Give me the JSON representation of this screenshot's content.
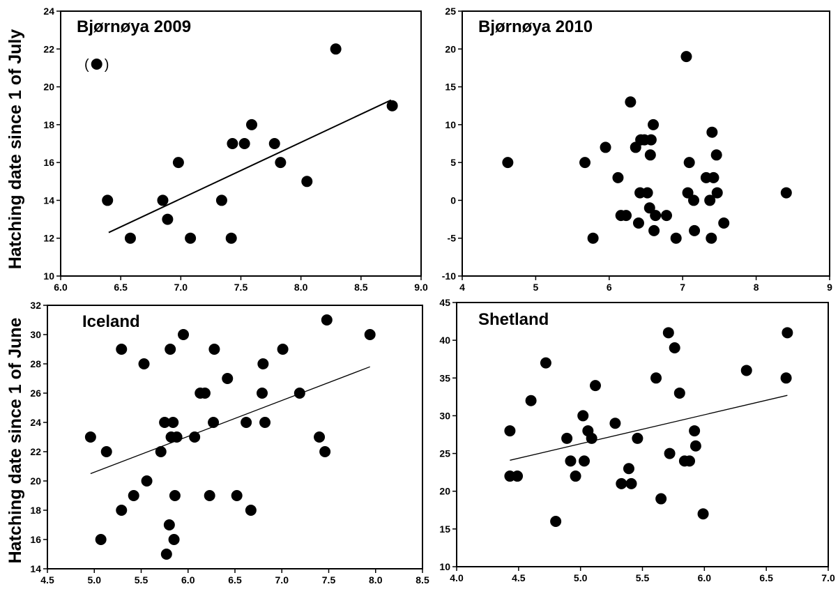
{
  "figure": {
    "ylabel_top": "Hatching date since 1 of July",
    "ylabel_bottom": "Hatching date since 1 of June"
  },
  "chart_data": [
    {
      "type": "scatter",
      "title": "Bjørnøya 2009",
      "xlim": [
        6.0,
        9.0
      ],
      "ylim": [
        10,
        24
      ],
      "xticks": [
        "6.0",
        "6.5",
        "7.0",
        "7.5",
        "8.0",
        "8.5",
        "9.0"
      ],
      "yticks": [
        "10",
        "12",
        "14",
        "16",
        "18",
        "20",
        "22",
        "24"
      ],
      "points": [
        {
          "x": 6.39,
          "y": 14
        },
        {
          "x": 6.58,
          "y": 12
        },
        {
          "x": 6.85,
          "y": 14
        },
        {
          "x": 6.89,
          "y": 13
        },
        {
          "x": 6.98,
          "y": 16
        },
        {
          "x": 7.08,
          "y": 12
        },
        {
          "x": 7.34,
          "y": 14
        },
        {
          "x": 7.42,
          "y": 12
        },
        {
          "x": 7.43,
          "y": 17
        },
        {
          "x": 7.53,
          "y": 17
        },
        {
          "x": 7.59,
          "y": 18
        },
        {
          "x": 7.78,
          "y": 17
        },
        {
          "x": 7.83,
          "y": 16
        },
        {
          "x": 8.05,
          "y": 15
        },
        {
          "x": 8.29,
          "y": 22
        },
        {
          "x": 8.76,
          "y": 19
        }
      ],
      "outlier": {
        "x": 6.3,
        "y": 21.2,
        "label_left": "(",
        "label_right": ")"
      },
      "fit": {
        "x0": 6.4,
        "y0": 12.3,
        "x1": 8.75,
        "y1": 19.3
      }
    },
    {
      "type": "scatter",
      "title": "Bjørnøya 2010",
      "xlim": [
        4,
        9
      ],
      "ylim": [
        -10,
        25
      ],
      "xticks": [
        "4",
        "5",
        "6",
        "7",
        "8",
        "9"
      ],
      "yticks": [
        "-10",
        "-5",
        "0",
        "5",
        "10",
        "15",
        "20",
        "25"
      ],
      "points": [
        {
          "x": 4.62,
          "y": 5
        },
        {
          "x": 5.67,
          "y": 5
        },
        {
          "x": 5.78,
          "y": -5
        },
        {
          "x": 5.95,
          "y": 7
        },
        {
          "x": 6.12,
          "y": 3
        },
        {
          "x": 6.16,
          "y": -2
        },
        {
          "x": 6.23,
          "y": -2
        },
        {
          "x": 6.29,
          "y": 13
        },
        {
          "x": 6.36,
          "y": 7
        },
        {
          "x": 6.4,
          "y": -3
        },
        {
          "x": 6.42,
          "y": 1
        },
        {
          "x": 6.43,
          "y": 8
        },
        {
          "x": 6.48,
          "y": 8
        },
        {
          "x": 6.52,
          "y": 1
        },
        {
          "x": 6.55,
          "y": -1
        },
        {
          "x": 6.56,
          "y": 6
        },
        {
          "x": 6.57,
          "y": 8
        },
        {
          "x": 6.6,
          "y": 10
        },
        {
          "x": 6.61,
          "y": -4
        },
        {
          "x": 6.63,
          "y": -2
        },
        {
          "x": 6.78,
          "y": -2
        },
        {
          "x": 6.91,
          "y": -5
        },
        {
          "x": 7.05,
          "y": 19
        },
        {
          "x": 7.07,
          "y": 1
        },
        {
          "x": 7.09,
          "y": 5
        },
        {
          "x": 7.15,
          "y": 0
        },
        {
          "x": 7.16,
          "y": -4
        },
        {
          "x": 7.32,
          "y": 3
        },
        {
          "x": 7.37,
          "y": 0
        },
        {
          "x": 7.39,
          "y": -5
        },
        {
          "x": 7.4,
          "y": 9
        },
        {
          "x": 7.42,
          "y": 3
        },
        {
          "x": 7.46,
          "y": 6
        },
        {
          "x": 7.47,
          "y": 1
        },
        {
          "x": 7.56,
          "y": -3
        },
        {
          "x": 8.41,
          "y": 1
        }
      ]
    },
    {
      "type": "scatter",
      "title": "Iceland",
      "xlim": [
        4.5,
        8.5
      ],
      "ylim": [
        14,
        32
      ],
      "xticks": [
        "4.5",
        "5.0",
        "5.5",
        "6.0",
        "6.5",
        "7.0",
        "7.5",
        "8.0",
        "8.5"
      ],
      "yticks": [
        "14",
        "16",
        "18",
        "20",
        "22",
        "24",
        "26",
        "28",
        "30",
        "32"
      ],
      "points": [
        {
          "x": 4.96,
          "y": 23
        },
        {
          "x": 5.07,
          "y": 16
        },
        {
          "x": 5.13,
          "y": 22
        },
        {
          "x": 5.29,
          "y": 29
        },
        {
          "x": 5.29,
          "y": 18
        },
        {
          "x": 5.42,
          "y": 19
        },
        {
          "x": 5.53,
          "y": 28
        },
        {
          "x": 5.56,
          "y": 20
        },
        {
          "x": 5.71,
          "y": 22
        },
        {
          "x": 5.75,
          "y": 24
        },
        {
          "x": 5.77,
          "y": 15
        },
        {
          "x": 5.8,
          "y": 17
        },
        {
          "x": 5.81,
          "y": 29
        },
        {
          "x": 5.82,
          "y": 23
        },
        {
          "x": 5.84,
          "y": 24
        },
        {
          "x": 5.85,
          "y": 16
        },
        {
          "x": 5.86,
          "y": 19
        },
        {
          "x": 5.88,
          "y": 23
        },
        {
          "x": 5.95,
          "y": 30
        },
        {
          "x": 6.07,
          "y": 23
        },
        {
          "x": 6.13,
          "y": 26
        },
        {
          "x": 6.18,
          "y": 26
        },
        {
          "x": 6.23,
          "y": 19
        },
        {
          "x": 6.27,
          "y": 24
        },
        {
          "x": 6.28,
          "y": 29
        },
        {
          "x": 6.42,
          "y": 27
        },
        {
          "x": 6.52,
          "y": 19
        },
        {
          "x": 6.62,
          "y": 24
        },
        {
          "x": 6.67,
          "y": 18
        },
        {
          "x": 6.79,
          "y": 26
        },
        {
          "x": 6.8,
          "y": 28
        },
        {
          "x": 6.82,
          "y": 24
        },
        {
          "x": 7.01,
          "y": 29
        },
        {
          "x": 7.19,
          "y": 26
        },
        {
          "x": 7.4,
          "y": 23
        },
        {
          "x": 7.46,
          "y": 22
        },
        {
          "x": 7.48,
          "y": 31
        },
        {
          "x": 7.94,
          "y": 30
        }
      ],
      "fit": {
        "x0": 4.96,
        "y0": 20.5,
        "x1": 7.94,
        "y1": 27.8
      }
    },
    {
      "type": "scatter",
      "title": "Shetland",
      "xlim": [
        4.0,
        7.0
      ],
      "ylim": [
        10,
        45
      ],
      "xticks": [
        "4.0",
        "4.5",
        "5.0",
        "5.5",
        "6.0",
        "6.5",
        "7.0"
      ],
      "yticks": [
        "10",
        "15",
        "20",
        "25",
        "30",
        "35",
        "40",
        "45"
      ],
      "points": [
        {
          "x": 4.43,
          "y": 28
        },
        {
          "x": 4.43,
          "y": 22
        },
        {
          "x": 4.49,
          "y": 22
        },
        {
          "x": 4.6,
          "y": 32
        },
        {
          "x": 4.72,
          "y": 37
        },
        {
          "x": 4.8,
          "y": 16
        },
        {
          "x": 4.89,
          "y": 27
        },
        {
          "x": 4.92,
          "y": 24
        },
        {
          "x": 4.96,
          "y": 22
        },
        {
          "x": 5.02,
          "y": 30
        },
        {
          "x": 5.03,
          "y": 24
        },
        {
          "x": 5.06,
          "y": 28
        },
        {
          "x": 5.09,
          "y": 27
        },
        {
          "x": 5.12,
          "y": 34
        },
        {
          "x": 5.28,
          "y": 29
        },
        {
          "x": 5.33,
          "y": 21
        },
        {
          "x": 5.39,
          "y": 23
        },
        {
          "x": 5.41,
          "y": 21
        },
        {
          "x": 5.46,
          "y": 27
        },
        {
          "x": 5.61,
          "y": 35
        },
        {
          "x": 5.65,
          "y": 19
        },
        {
          "x": 5.71,
          "y": 41
        },
        {
          "x": 5.72,
          "y": 25
        },
        {
          "x": 5.76,
          "y": 39
        },
        {
          "x": 5.8,
          "y": 33
        },
        {
          "x": 5.84,
          "y": 24
        },
        {
          "x": 5.88,
          "y": 24
        },
        {
          "x": 5.92,
          "y": 28
        },
        {
          "x": 5.93,
          "y": 26
        },
        {
          "x": 5.99,
          "y": 17
        },
        {
          "x": 6.34,
          "y": 36
        },
        {
          "x": 6.66,
          "y": 35
        },
        {
          "x": 6.67,
          "y": 41
        }
      ],
      "fit": {
        "x0": 4.43,
        "y0": 24.1,
        "x1": 6.67,
        "y1": 32.7
      }
    }
  ]
}
